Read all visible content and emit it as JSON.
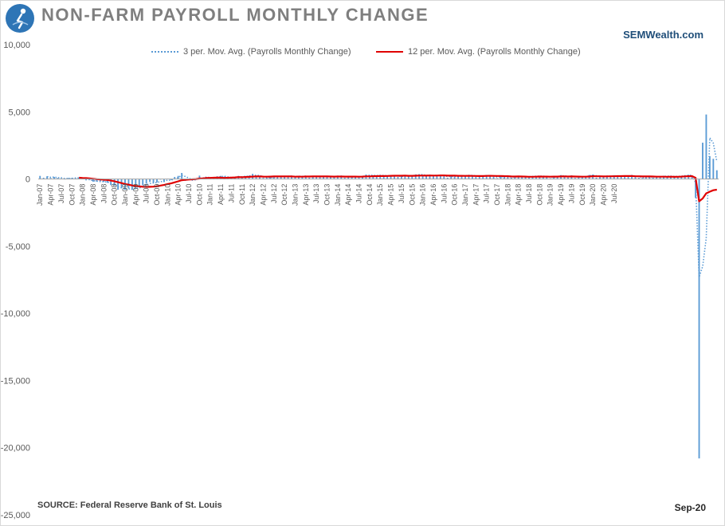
{
  "header": {
    "title": "NON-FARM PAYROLL MONTHLY CHANGE",
    "brand": "SEMWealth.com",
    "logo_icon": "seated-figure-logo-icon"
  },
  "footer": {
    "source": "SOURCE:  Federal Reserve Bank of St. Louis",
    "as_of": "Sep-20"
  },
  "colors": {
    "bars": "#5b9bd5",
    "ma3": "#5b9bd5",
    "ma12": "#e00000",
    "logo": "#2e75b6"
  },
  "chart_data": {
    "type": "bar",
    "title": "NON-FARM PAYROLL MONTHLY CHANGE",
    "ylim": [
      -25000,
      10000
    ],
    "y_ticks": [
      10000,
      5000,
      0,
      -5000,
      -10000,
      -15000,
      -20000,
      -25000
    ],
    "y_tick_labels": [
      "10,000",
      "5,000",
      "0",
      "-5,000",
      "-10,000",
      "-15,000",
      "-20,000",
      "-25,000"
    ],
    "x_tick_labels": [
      "Jan-07",
      "Apr-07",
      "Jul-07",
      "Oct-07",
      "Jan-08",
      "Apr-08",
      "Jul-08",
      "Oct-08",
      "Jan-09",
      "Apr-09",
      "Jul-09",
      "Oct-09",
      "Jan-10",
      "Apr-10",
      "Jul-10",
      "Oct-10",
      "Jan-11",
      "Apr-11",
      "Jul-11",
      "Oct-11",
      "Jan-12",
      "Apr-12",
      "Jul-12",
      "Oct-12",
      "Jan-13",
      "Apr-13",
      "Jul-13",
      "Oct-13",
      "Jan-14",
      "Apr-14",
      "Jul-14",
      "Oct-14",
      "Jan-15",
      "Apr-15",
      "Jul-15",
      "Oct-15",
      "Jan-16",
      "Apr-16",
      "Jul-16",
      "Oct-16",
      "Jan-17",
      "Apr-17",
      "Jul-17",
      "Oct-17",
      "Jan-18",
      "Apr-18",
      "Jul-18",
      "Oct-18",
      "Jan-19",
      "Apr-19",
      "Jul-19",
      "Oct-19",
      "Jan-20",
      "Apr-20",
      "Jul-20"
    ],
    "legend_position": "top",
    "grid": false,
    "series": [
      {
        "name": "Payrolls Monthly Change",
        "type": "bar",
        "values": [
          230,
          90,
          200,
          70,
          150,
          80,
          30,
          -30,
          80,
          80,
          60,
          100,
          20,
          -100,
          -80,
          -200,
          -200,
          -170,
          -220,
          -280,
          -460,
          -490,
          -800,
          -690,
          -800,
          -700,
          -800,
          -700,
          -520,
          -470,
          -350,
          -220,
          -300,
          -250,
          -50,
          -230,
          20,
          -80,
          150,
          230,
          450,
          -140,
          -80,
          -30,
          -60,
          250,
          40,
          140,
          110,
          60,
          200,
          230,
          180,
          50,
          80,
          120,
          230,
          150,
          220,
          250,
          380,
          180,
          210,
          80,
          100,
          120,
          200,
          180,
          180,
          210,
          190,
          230,
          140,
          240,
          200,
          200,
          100,
          220,
          180,
          170,
          160,
          210,
          160,
          120,
          250,
          250,
          90,
          190,
          150,
          160,
          150,
          240,
          330,
          260,
          250,
          250,
          300,
          220,
          200,
          300,
          220,
          160,
          190,
          260,
          210,
          280,
          340,
          330,
          300,
          190,
          330,
          230,
          250,
          260,
          190,
          90,
          270,
          170,
          250,
          280,
          220,
          300,
          260,
          150,
          200,
          260,
          300,
          200,
          170,
          60,
          250,
          170,
          160,
          100,
          200,
          170,
          150,
          160,
          200,
          210,
          200,
          230,
          180,
          170,
          60,
          150,
          240,
          290,
          180,
          110,
          270,
          80,
          150,
          170,
          200,
          300,
          330,
          100,
          200,
          170,
          250,
          170,
          280,
          190,
          210,
          260,
          160,
          300,
          140,
          90,
          70,
          170,
          190,
          100,
          160,
          190,
          240,
          190,
          190,
          190,
          210,
          220,
          280,
          310,
          250,
          -1400,
          -20800,
          2700,
          4800,
          1700,
          1500,
          650
        ],
        "color": "#5b9bd5"
      },
      {
        "name": "3 per. Mov. Avg. (Payrolls Monthly Change)",
        "type": "line",
        "style": "dotted",
        "note": "3-period moving average computed from bar series",
        "color": "#5b9bd5"
      },
      {
        "name": "12 per. Mov. Avg. (Payrolls Monthly Change)",
        "type": "line",
        "style": "solid",
        "note": "12-period moving average computed from bar series",
        "color": "#e00000"
      }
    ]
  }
}
